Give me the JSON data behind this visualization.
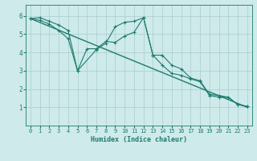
{
  "xlabel": "Humidex (Indice chaleur)",
  "background_color": "#ceeaea",
  "grid_color": "#aacccc",
  "line_color": "#1e7b6e",
  "xlim": [
    -0.5,
    23.5
  ],
  "ylim": [
    0,
    6.6
  ],
  "xticks": [
    0,
    1,
    2,
    3,
    4,
    5,
    6,
    7,
    8,
    9,
    10,
    11,
    12,
    13,
    14,
    15,
    16,
    17,
    18,
    19,
    20,
    21,
    22,
    23
  ],
  "yticks": [
    1,
    2,
    3,
    4,
    5,
    6
  ],
  "series1_x": [
    0,
    1,
    2,
    3,
    4,
    5,
    7,
    8,
    9,
    10,
    11,
    12,
    13,
    14,
    15,
    16,
    17,
    18,
    19,
    20,
    21,
    22,
    23
  ],
  "series1_y": [
    5.85,
    5.9,
    5.7,
    5.5,
    5.2,
    3.0,
    4.15,
    4.5,
    5.4,
    5.65,
    5.7,
    5.9,
    3.85,
    3.85,
    3.3,
    3.1,
    2.6,
    2.45,
    1.7,
    1.65,
    1.55,
    1.15,
    1.05
  ],
  "series2_x": [
    0,
    1,
    2,
    3,
    4,
    5,
    6,
    7,
    8,
    9,
    10,
    11,
    12,
    13,
    14,
    15,
    16,
    17,
    18,
    19,
    20,
    21,
    22,
    23
  ],
  "series2_y": [
    5.85,
    5.75,
    5.55,
    5.2,
    4.75,
    3.0,
    4.2,
    4.2,
    4.6,
    4.55,
    4.9,
    5.1,
    5.9,
    3.85,
    3.3,
    2.85,
    2.75,
    2.55,
    2.4,
    1.65,
    1.55,
    1.55,
    1.15,
    1.05
  ],
  "series3_x": [
    0,
    23
  ],
  "series3_y": [
    5.85,
    1.0
  ]
}
